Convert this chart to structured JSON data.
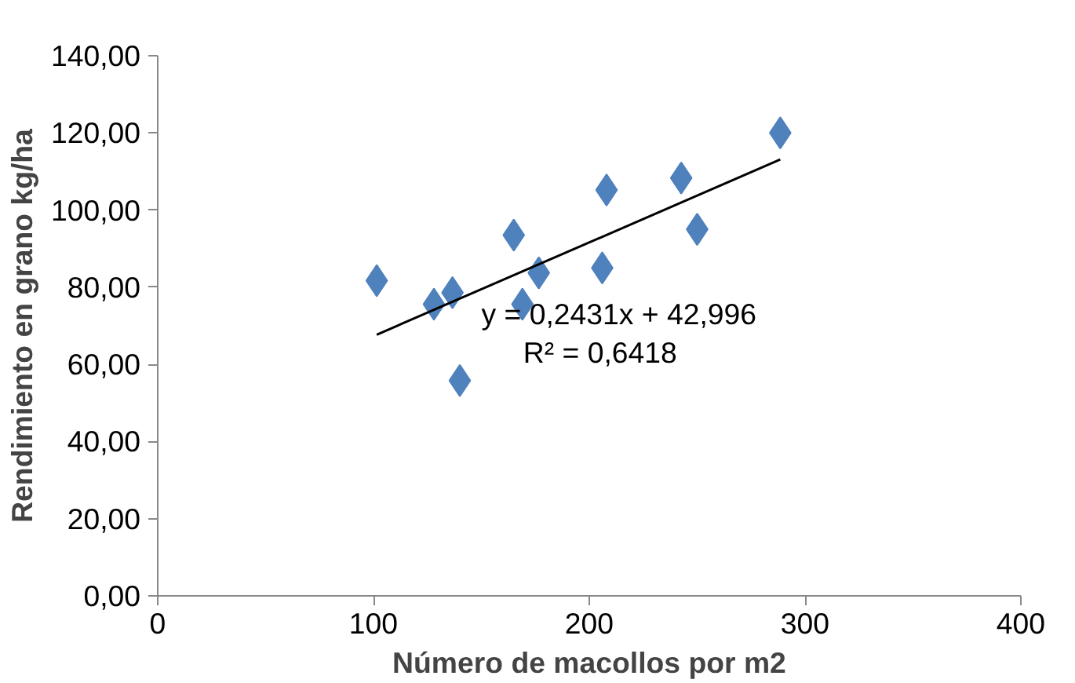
{
  "chart_data": {
    "type": "scatter",
    "xlabel": "Número de macollos por m2",
    "ylabel": "Rendimiento en grano kg/ha",
    "grid": false,
    "xlim": [
      0,
      400
    ],
    "xticks": [
      0,
      100,
      200,
      300,
      400
    ],
    "ylim": [
      0,
      140
    ],
    "yticks": [
      {
        "value": 0,
        "label": "0,00"
      },
      {
        "value": 20,
        "label": "20,00"
      },
      {
        "value": 40,
        "label": "40,00"
      },
      {
        "value": 60,
        "label": "60,00"
      },
      {
        "value": 80,
        "label": "80,00"
      },
      {
        "value": 100,
        "label": "100,00"
      },
      {
        "value": 120,
        "label": "120,00"
      },
      {
        "value": 140,
        "label": "140,00"
      }
    ],
    "series": [
      {
        "marker": "diamond",
        "color": "#4f81bd",
        "x": [
          101.5,
          128,
          136.6,
          140,
          165,
          169,
          176.6,
          208,
          206,
          242.6,
          250,
          288.5
        ],
        "values": [
          81.7,
          75.6,
          78.6,
          55.8,
          93.5,
          75.6,
          83.7,
          105.2,
          85,
          108.3,
          95,
          120
        ]
      },
      {
        "type": "line",
        "marker": "none",
        "color": "#000000",
        "x": [
          101.5,
          288.5
        ],
        "values": [
          67.7,
          113.1
        ]
      }
    ],
    "annotations": [
      "y = 0,2431x + 42,996",
      "R² = 0,6418"
    ]
  }
}
